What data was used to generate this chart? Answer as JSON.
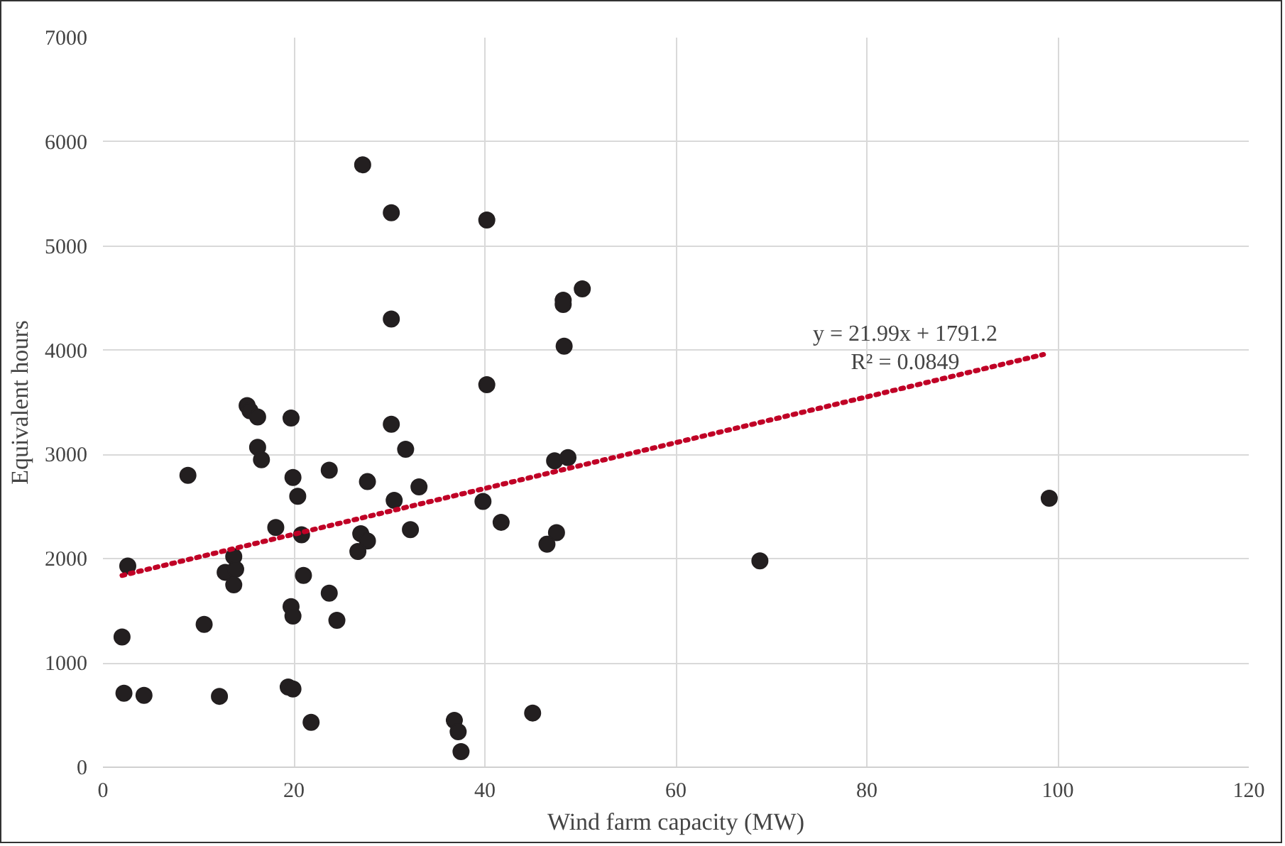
{
  "chart_data": {
    "type": "scatter",
    "xlabel": "Wind farm capacity (MW)",
    "ylabel": "Equivalent hours",
    "xlim": [
      0,
      120
    ],
    "xticks": [
      0,
      20,
      40,
      60,
      80,
      100,
      120
    ],
    "ylim": [
      0,
      7000
    ],
    "yticks": [
      0,
      1000,
      2000,
      3000,
      4000,
      5000,
      6000,
      7000
    ],
    "grid": true,
    "marker": "circle",
    "series": [
      {
        "color": "#231f20",
        "x": [
          27.2,
          30.2,
          40.2,
          30.2,
          40.2,
          15.1,
          15.4,
          16.2,
          19.7,
          30.2,
          16.2,
          16.6,
          31.7,
          8.9,
          19.9,
          23.7,
          27.7,
          20.4,
          30.5,
          18.1,
          20.8,
          27.0,
          27.7,
          26.7,
          2.6,
          13.7,
          12.8,
          13.9,
          13.7,
          21.0,
          23.7,
          19.7,
          19.9,
          24.5,
          10.6,
          2.0,
          2.2,
          4.3,
          12.2,
          19.4,
          19.9,
          21.8,
          50.2,
          48.2,
          48.2,
          48.3,
          47.3,
          48.7,
          33.1,
          39.8,
          32.2,
          41.7,
          47.5,
          46.5,
          36.8,
          37.2,
          37.5,
          45.0,
          68.8,
          99.1
        ],
        "values": [
          5780,
          5320,
          5250,
          4300,
          3670,
          3470,
          3420,
          3360,
          3350,
          3290,
          3070,
          2950,
          3050,
          2800,
          2780,
          2850,
          2740,
          2600,
          2560,
          2300,
          2230,
          2240,
          2170,
          2070,
          1930,
          2020,
          1870,
          1900,
          1750,
          1840,
          1670,
          1540,
          1450,
          1410,
          1370,
          1250,
          710,
          690,
          680,
          770,
          750,
          430,
          4590,
          4480,
          4440,
          4040,
          2940,
          2970,
          2690,
          2550,
          2280,
          2350,
          2250,
          2140,
          450,
          340,
          150,
          520,
          1980,
          2580
        ]
      },
      {
        "type": "line",
        "color": "#c00026",
        "line_style": "dotted",
        "marker": "none",
        "x": [
          2,
          98.5
        ],
        "values": [
          1840,
          3960
        ]
      }
    ],
    "annotations": [
      "y = 21.99x + 1791.2",
      "R² = 0.0849"
    ]
  }
}
